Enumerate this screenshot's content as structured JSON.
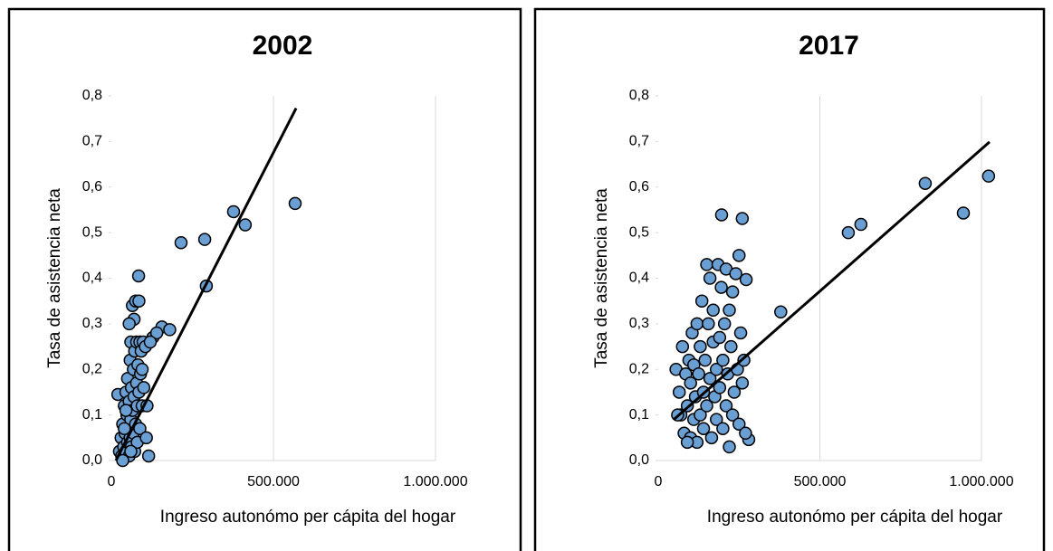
{
  "chart_data": [
    {
      "type": "scatter",
      "title": "2002",
      "x_label": "Ingreso autonómo per cápita del hogar",
      "y_label": "Tasa de asistencia neta",
      "color": "#6a9fd4",
      "grid": true,
      "xlim": [
        0,
        1000000
      ],
      "ylim": [
        0,
        0.8
      ],
      "xticks": [
        0,
        {
          "value": 500000,
          "label": "500.000"
        },
        {
          "value": 1000000,
          "label": "1.000.000"
        }
      ],
      "yticks": [
        {
          "value": 0,
          "label": "0,0"
        },
        {
          "value": 0.1,
          "label": "0,1"
        },
        {
          "value": 0.2,
          "label": "0,2"
        },
        {
          "value": 0.3,
          "label": "0,3"
        },
        {
          "value": 0.4,
          "label": "0,4"
        },
        {
          "value": 0.5,
          "label": "0,5"
        },
        {
          "value": 0.6,
          "label": "0,6"
        },
        {
          "value": 0.7,
          "label": "0,7"
        },
        {
          "value": 0.8,
          "label": "0,8"
        }
      ],
      "x": [
        20000,
        215000,
        288000,
        293000,
        377000,
        413000,
        567000,
        156000,
        180000,
        84000,
        25000,
        30000,
        32000,
        35000,
        38000,
        40000,
        42000,
        45000,
        45000,
        48000,
        50000,
        50000,
        52000,
        55000,
        55000,
        58000,
        58000,
        60000,
        60000,
        62000,
        62000,
        65000,
        65000,
        68000,
        68000,
        70000,
        70000,
        72000,
        72000,
        75000,
        75000,
        78000,
        78000,
        80000,
        80000,
        82000,
        85000,
        85000,
        88000,
        88000,
        90000,
        92000,
        95000,
        95000,
        98000,
        100000,
        105000,
        108000,
        115000,
        128000,
        140000,
        120000,
        110000,
        45000,
        35000,
        55000,
        60000,
        40000
      ],
      "y": [
        0.145,
        0.478,
        0.485,
        0.383,
        0.546,
        0.517,
        0.564,
        0.293,
        0.287,
        0.405,
        0.02,
        0.05,
        0.01,
        0.08,
        0.03,
        0.12,
        0.06,
        0.02,
        0.15,
        0.1,
        0.04,
        0.18,
        0.07,
        0.01,
        0.13,
        0.22,
        0.05,
        0.09,
        0.26,
        0.03,
        0.16,
        0.11,
        0.34,
        0.2,
        0.06,
        0.14,
        0.31,
        0.24,
        0.02,
        0.35,
        0.08,
        0.17,
        0.26,
        0.12,
        0.04,
        0.21,
        0.35,
        0.15,
        0.26,
        0.07,
        0.19,
        0.24,
        0.12,
        0.2,
        0.26,
        0.16,
        0.25,
        0.05,
        0.01,
        0.27,
        0.28,
        0.26,
        0.12,
        0.11,
        0.0,
        0.3,
        0.02,
        0.07
      ],
      "trendline": {
        "x": [
          14000,
          570000
        ],
        "y": [
          0,
          0.773
        ]
      }
    },
    {
      "type": "scatter",
      "title": "2017",
      "x_label": "Ingreso autonómo per cápita del hogar",
      "y_label": "Tasa de asistencia neta",
      "color": "#6a9fd4",
      "grid": true,
      "xlim": [
        0,
        1000000
      ],
      "ylim": [
        0,
        0.8
      ],
      "xticks": [
        0,
        {
          "value": 500000,
          "label": "500.000"
        },
        {
          "value": 1000000,
          "label": "1.000.000"
        }
      ],
      "yticks": [
        {
          "value": 0,
          "label": "0,0"
        },
        {
          "value": 0.1,
          "label": "0,1"
        },
        {
          "value": 0.2,
          "label": "0,2"
        },
        {
          "value": 0.3,
          "label": "0,3"
        },
        {
          "value": 0.4,
          "label": "0,4"
        },
        {
          "value": 0.5,
          "label": "0,5"
        },
        {
          "value": 0.6,
          "label": "0,6"
        },
        {
          "value": 0.7,
          "label": "0,7"
        },
        {
          "value": 0.8,
          "label": "0,8"
        }
      ],
      "x": [
        588000,
        627000,
        826000,
        944000,
        1022000,
        379000,
        196000,
        260000,
        272000,
        280000,
        55000,
        65000,
        70000,
        75000,
        80000,
        85000,
        90000,
        95000,
        100000,
        100000,
        105000,
        110000,
        110000,
        115000,
        120000,
        120000,
        125000,
        130000,
        130000,
        135000,
        140000,
        140000,
        145000,
        150000,
        150000,
        155000,
        160000,
        160000,
        165000,
        170000,
        170000,
        175000,
        180000,
        180000,
        185000,
        190000,
        190000,
        195000,
        200000,
        200000,
        205000,
        210000,
        210000,
        215000,
        220000,
        220000,
        225000,
        230000,
        230000,
        235000,
        240000,
        245000,
        250000,
        250000,
        255000,
        260000,
        265000,
        270000,
        60000,
        90000
      ],
      "y": [
        0.5,
        0.518,
        0.608,
        0.543,
        0.624,
        0.326,
        0.539,
        0.531,
        0.397,
        0.046,
        0.2,
        0.15,
        0.1,
        0.25,
        0.06,
        0.19,
        0.12,
        0.22,
        0.05,
        0.17,
        0.28,
        0.09,
        0.21,
        0.14,
        0.3,
        0.04,
        0.19,
        0.25,
        0.1,
        0.35,
        0.15,
        0.07,
        0.22,
        0.43,
        0.12,
        0.3,
        0.18,
        0.4,
        0.05,
        0.26,
        0.33,
        0.14,
        0.2,
        0.09,
        0.43,
        0.27,
        0.16,
        0.38,
        0.07,
        0.22,
        0.3,
        0.12,
        0.42,
        0.19,
        0.03,
        0.33,
        0.25,
        0.37,
        0.1,
        0.15,
        0.41,
        0.2,
        0.45,
        0.08,
        0.28,
        0.17,
        0.22,
        0.06,
        0.1,
        0.04
      ],
      "trendline": {
        "x": [
          50000,
          1025000
        ],
        "y": [
          0.091,
          0.699
        ]
      }
    }
  ]
}
